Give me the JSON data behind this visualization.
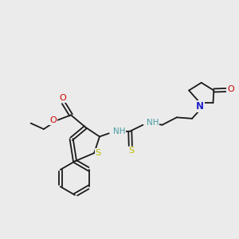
{
  "bg_color": "#ebebeb",
  "bond_color": "#1a1a1a",
  "N_color": "#2222cc",
  "O_color": "#cc0000",
  "S_color": "#bbbb00",
  "teal_color": "#4a9ea5",
  "figsize": [
    3.0,
    3.0
  ],
  "dpi": 100,
  "xlim": [
    0,
    10
  ],
  "ylim": [
    0,
    10
  ]
}
